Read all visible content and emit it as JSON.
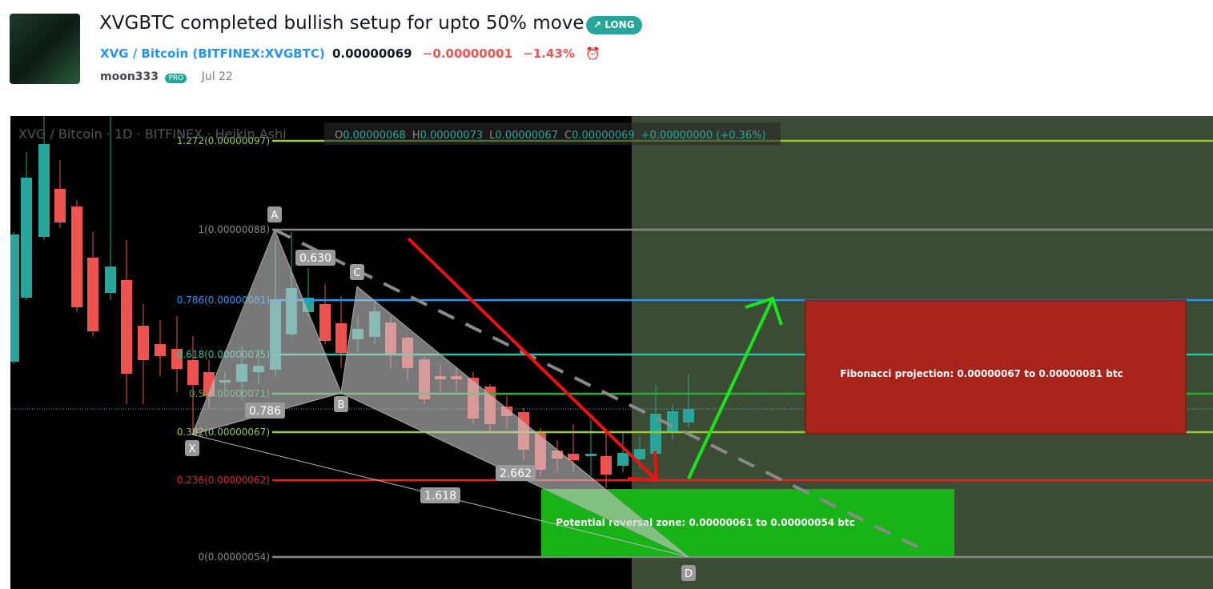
{
  "header": {
    "title": "XVGBTC completed bullish setup for upto 50% move",
    "badge": "LONG",
    "symbol": "XVG / Bitcoin",
    "exchange": "(BITFINEX:XVGBTC)",
    "price": "0.00000069",
    "change": "−0.00000001",
    "change_pct": "−1.43%",
    "author": "moon333",
    "author_badge": "PRO",
    "date": "Jul 22"
  },
  "chart": {
    "legend": "XVG / Bitcoin · 1D · BITFINEX · Heikin Ashi",
    "ohlc": [
      {
        "k": "O",
        "v": "0.00000068"
      },
      {
        "k": "H",
        "v": "0.00000073"
      },
      {
        "k": "L",
        "v": "0.00000067"
      },
      {
        "k": "C",
        "v": "0.00000069"
      }
    ],
    "ohlc_change": "+0.00000000 (+0.36%)",
    "fib_levels": [
      {
        "label": "1.272(0.00000097)",
        "color": "#9acd32"
      },
      {
        "label": "1(0.00000088)",
        "color": "#888888"
      },
      {
        "label": "0.786(0.00000081)",
        "color": "#2196f3"
      },
      {
        "label": "0.618(0.00000075)",
        "color": "#26c6a0"
      },
      {
        "label": "0.5(0.00000071)",
        "color": "#22b22b"
      },
      {
        "label": "0.382(0.00000067)",
        "color": "#9acd32"
      },
      {
        "label": "0.236(0.00000062)",
        "color": "#e0261f"
      },
      {
        "label": "0(0.00000054)",
        "color": "#888888"
      }
    ],
    "points": [
      "X",
      "A",
      "B",
      "C",
      "D"
    ],
    "ratios": [
      "0.630",
      "0.786",
      "2.662",
      "1.618"
    ],
    "projection_box": "Fibonacci projection: 0.00000067 to 0.00000081 btc",
    "reversal_box": "Potential reversal zone: 0.00000061 to 0.00000054 btc"
  }
}
